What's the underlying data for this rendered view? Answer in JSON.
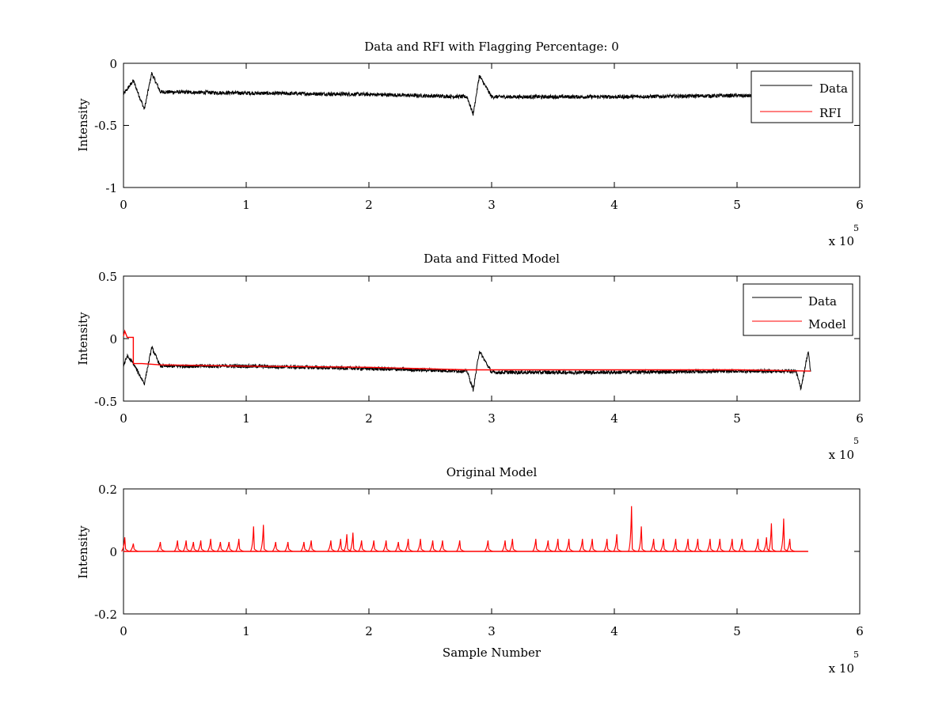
{
  "chart_data": [
    {
      "type": "line",
      "title": "Data and RFI with Flagging Percentage: 0",
      "xlabel": "",
      "ylabel": "Intensity",
      "xlim": [
        0,
        600000
      ],
      "ylim": [
        -1,
        0
      ],
      "x_ticks": [
        0,
        1,
        2,
        3,
        4,
        5,
        6
      ],
      "y_ticks": [
        "0",
        "-0.5",
        "-1"
      ],
      "y_tick_values": [
        0,
        -0.5,
        -1
      ],
      "x_exponent_label": "x 10",
      "x_exponent": "5",
      "legend": {
        "location": "top-right",
        "entries": [
          "Data",
          "RFI"
        ]
      },
      "series": [
        {
          "name": "Data",
          "color": "#000000",
          "mean_points": [
            [
              0,
              -0.25
            ],
            [
              8000,
              -0.14
            ],
            [
              17000,
              -0.37
            ],
            [
              23000,
              -0.08
            ],
            [
              30000,
              -0.23
            ],
            [
              100000,
              -0.24
            ],
            [
              200000,
              -0.25
            ],
            [
              280000,
              -0.27
            ],
            [
              285000,
              -0.41
            ],
            [
              290000,
              -0.1
            ],
            [
              300000,
              -0.27
            ],
            [
              400000,
              -0.27
            ],
            [
              500000,
              -0.26
            ],
            [
              550000,
              -0.27
            ]
          ],
          "noise_band": 0.03
        },
        {
          "name": "RFI",
          "color": "#ff0000",
          "points": []
        }
      ]
    },
    {
      "type": "line",
      "title": "Data and Fitted Model",
      "xlabel": "",
      "ylabel": "Intensity",
      "xlim": [
        0,
        600000
      ],
      "ylim": [
        -0.5,
        0.5
      ],
      "x_ticks": [
        0,
        1,
        2,
        3,
        4,
        5,
        6
      ],
      "y_ticks": [
        "0.5",
        "0",
        "-0.5"
      ],
      "y_tick_values": [
        0.5,
        0,
        -0.5
      ],
      "x_exponent_label": "x 10",
      "x_exponent": "5",
      "legend": {
        "location": "top-right",
        "entries": [
          "Data",
          "Model"
        ]
      },
      "series": [
        {
          "name": "Data",
          "color": "#000000",
          "mean_points": [
            [
              0,
              -0.22
            ],
            [
              3000,
              -0.14
            ],
            [
              8000,
              -0.2
            ],
            [
              17000,
              -0.36
            ],
            [
              23000,
              -0.07
            ],
            [
              30000,
              -0.22
            ],
            [
              100000,
              -0.22
            ],
            [
              200000,
              -0.24
            ],
            [
              280000,
              -0.26
            ],
            [
              285000,
              -0.41
            ],
            [
              290000,
              -0.1
            ],
            [
              300000,
              -0.27
            ],
            [
              400000,
              -0.27
            ],
            [
              500000,
              -0.26
            ],
            [
              548000,
              -0.26
            ],
            [
              552000,
              -0.4
            ],
            [
              558000,
              -0.1
            ],
            [
              560000,
              -0.27
            ]
          ],
          "noise_band": 0.03
        },
        {
          "name": "Model",
          "color": "#ff0000",
          "points": [
            [
              0,
              0.02
            ],
            [
              1000,
              0.06
            ],
            [
              3000,
              0.01
            ],
            [
              8000,
              0.01
            ],
            [
              8000,
              -0.2
            ],
            [
              15000,
              -0.2
            ],
            [
              30000,
              -0.21
            ],
            [
              100000,
              -0.22
            ],
            [
              200000,
              -0.23
            ],
            [
              280000,
              -0.25
            ],
            [
              300000,
              -0.25
            ],
            [
              400000,
              -0.25
            ],
            [
              500000,
              -0.25
            ],
            [
              560000,
              -0.26
            ]
          ]
        }
      ]
    },
    {
      "type": "line",
      "title": "Original Model",
      "xlabel": "Sample Number",
      "ylabel": "Intensity",
      "xlim": [
        0,
        600000
      ],
      "ylim": [
        -0.2,
        0.2
      ],
      "x_ticks": [
        0,
        1,
        2,
        3,
        4,
        5,
        6
      ],
      "y_ticks": [
        "0.2",
        "0",
        "-0.2"
      ],
      "y_tick_values": [
        0.2,
        0,
        -0.2
      ],
      "x_exponent_label": "x 10",
      "x_exponent": "5",
      "series": [
        {
          "name": "Model",
          "color": "#ff0000",
          "baseline": 0,
          "spikes": [
            [
              1000,
              0.045
            ],
            [
              8000,
              0.025
            ],
            [
              30000,
              0.03
            ],
            [
              44000,
              0.035
            ],
            [
              51000,
              0.035
            ],
            [
              57000,
              0.03
            ],
            [
              63000,
              0.035
            ],
            [
              71000,
              0.04
            ],
            [
              79000,
              0.03
            ],
            [
              86000,
              0.03
            ],
            [
              94000,
              0.04
            ],
            [
              106000,
              0.08
            ],
            [
              114000,
              0.085
            ],
            [
              124000,
              0.03
            ],
            [
              134000,
              0.03
            ],
            [
              147000,
              0.03
            ],
            [
              153000,
              0.035
            ],
            [
              169000,
              0.035
            ],
            [
              177000,
              0.04
            ],
            [
              182000,
              0.055
            ],
            [
              187000,
              0.06
            ],
            [
              194000,
              0.035
            ],
            [
              204000,
              0.035
            ],
            [
              214000,
              0.035
            ],
            [
              224000,
              0.03
            ],
            [
              232000,
              0.04
            ],
            [
              242000,
              0.04
            ],
            [
              252000,
              0.035
            ],
            [
              260000,
              0.035
            ],
            [
              274000,
              0.035
            ],
            [
              297000,
              0.035
            ],
            [
              311000,
              0.035
            ],
            [
              317000,
              0.04
            ],
            [
              336000,
              0.04
            ],
            [
              346000,
              0.035
            ],
            [
              354000,
              0.04
            ],
            [
              363000,
              0.04
            ],
            [
              374000,
              0.04
            ],
            [
              382000,
              0.04
            ],
            [
              394000,
              0.04
            ],
            [
              402000,
              0.055
            ],
            [
              414000,
              0.145
            ],
            [
              422000,
              0.08
            ],
            [
              432000,
              0.04
            ],
            [
              440000,
              0.04
            ],
            [
              450000,
              0.04
            ],
            [
              460000,
              0.04
            ],
            [
              468000,
              0.04
            ],
            [
              478000,
              0.04
            ],
            [
              486000,
              0.04
            ],
            [
              496000,
              0.04
            ],
            [
              504000,
              0.04
            ],
            [
              517000,
              0.04
            ],
            [
              524000,
              0.045
            ],
            [
              528000,
              0.09
            ],
            [
              538000,
              0.105
            ],
            [
              543000,
              0.04
            ]
          ]
        }
      ]
    }
  ]
}
